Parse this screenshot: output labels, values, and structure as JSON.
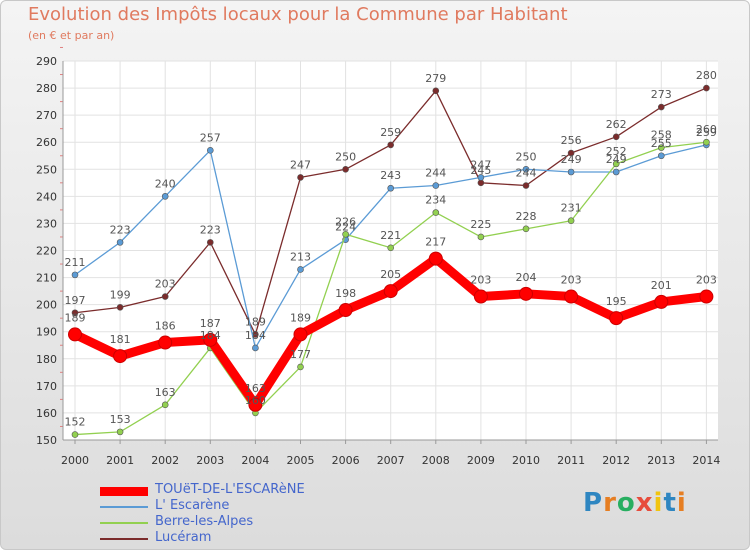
{
  "title": "Evolution des Impôts locaux pour la Commune par Habitant",
  "subtitle": "(en € et par an)",
  "brand": {
    "text": "Proxiti",
    "letter_colors": [
      "#2e86c1",
      "#e67e22",
      "#27ae60",
      "#e74c3c",
      "#f1c40f",
      "#2e86c1",
      "#e67e22"
    ]
  },
  "chart_data": {
    "type": "line",
    "title": "Evolution des Impôts locaux pour la Commune par Habitant",
    "xlabel": "",
    "ylabel": "(en € et par an)",
    "ylim": [
      150,
      290
    ],
    "yticks": [
      150,
      160,
      170,
      180,
      190,
      200,
      210,
      220,
      230,
      240,
      250,
      260,
      270,
      280,
      290
    ],
    "grid": true,
    "x": [
      "2000",
      "2001",
      "2002",
      "2003",
      "2004",
      "2005",
      "2006",
      "2007",
      "2008",
      "2009",
      "2010",
      "2011",
      "2012",
      "2013",
      "2014"
    ],
    "series": [
      {
        "name": "TOUëT-DE-L'ESCARèNE",
        "color": "#ff0000",
        "values": [
          189,
          181,
          186,
          187,
          163,
          189,
          198,
          205,
          217,
          203,
          204,
          203,
          195,
          201,
          203
        ]
      },
      {
        "name": "L' Escarène",
        "color": "#5b9bd5",
        "values": [
          211,
          223,
          240,
          257,
          184,
          213,
          224,
          243,
          244,
          247,
          250,
          249,
          249,
          255,
          259
        ]
      },
      {
        "name": "Berre-les-Alpes",
        "color": "#92d050",
        "values": [
          152,
          153,
          163,
          184,
          160,
          177,
          226,
          221,
          234,
          225,
          228,
          231,
          252,
          258,
          260
        ]
      },
      {
        "name": "Lucéram",
        "color": "#7b2c2c",
        "values": [
          197,
          199,
          203,
          223,
          189,
          247,
          250,
          259,
          279,
          245,
          244,
          256,
          262,
          273,
          280
        ]
      }
    ]
  }
}
